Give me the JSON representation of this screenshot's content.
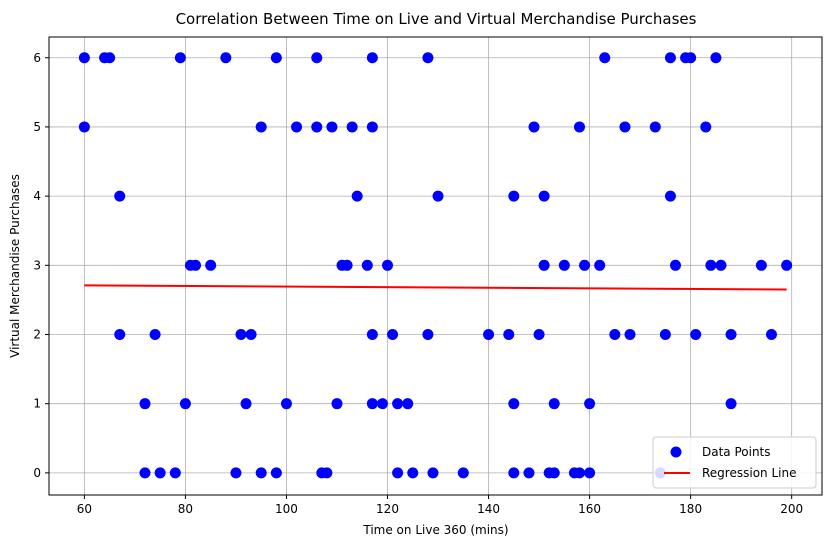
{
  "chart_data": {
    "type": "scatter",
    "title": "Correlation Between Time on Live and Virtual Merchandise Purchases",
    "xlabel": "Time on Live 360 (mins)",
    "ylabel": "Virtual Merchandise Purchases",
    "xlim": [
      53,
      206
    ],
    "ylim": [
      -0.32,
      6.3
    ],
    "xticks": [
      60,
      80,
      100,
      120,
      140,
      160,
      180,
      200
    ],
    "yticks": [
      0,
      1,
      2,
      3,
      4,
      5,
      6
    ],
    "grid": true,
    "legend_position": "lower-right",
    "colors": {
      "points": "#0000ff",
      "line": "#ff0000",
      "grid": "#b0b0b0"
    },
    "series": [
      {
        "name": "Data Points",
        "kind": "scatter",
        "points": [
          [
            60,
            6
          ],
          [
            64,
            6
          ],
          [
            65,
            6
          ],
          [
            79,
            6
          ],
          [
            88,
            6
          ],
          [
            98,
            6
          ],
          [
            106,
            6
          ],
          [
            117,
            6
          ],
          [
            128,
            6
          ],
          [
            163,
            6
          ],
          [
            176,
            6
          ],
          [
            179,
            6
          ],
          [
            180,
            6
          ],
          [
            185,
            6
          ],
          [
            60,
            5
          ],
          [
            95,
            5
          ],
          [
            102,
            5
          ],
          [
            106,
            5
          ],
          [
            109,
            5
          ],
          [
            113,
            5
          ],
          [
            117,
            5
          ],
          [
            149,
            5
          ],
          [
            158,
            5
          ],
          [
            167,
            5
          ],
          [
            173,
            5
          ],
          [
            183,
            5
          ],
          [
            67,
            4
          ],
          [
            114,
            4
          ],
          [
            130,
            4
          ],
          [
            145,
            4
          ],
          [
            151,
            4
          ],
          [
            176,
            4
          ],
          [
            81,
            3
          ],
          [
            82,
            3
          ],
          [
            85,
            3
          ],
          [
            111,
            3
          ],
          [
            112,
            3
          ],
          [
            116,
            3
          ],
          [
            120,
            3
          ],
          [
            151,
            3
          ],
          [
            155,
            3
          ],
          [
            159,
            3
          ],
          [
            162,
            3
          ],
          [
            177,
            3
          ],
          [
            184,
            3
          ],
          [
            186,
            3
          ],
          [
            194,
            3
          ],
          [
            199,
            3
          ],
          [
            67,
            2
          ],
          [
            74,
            2
          ],
          [
            91,
            2
          ],
          [
            93,
            2
          ],
          [
            117,
            2
          ],
          [
            121,
            2
          ],
          [
            128,
            2
          ],
          [
            140,
            2
          ],
          [
            144,
            2
          ],
          [
            150,
            2
          ],
          [
            165,
            2
          ],
          [
            168,
            2
          ],
          [
            175,
            2
          ],
          [
            181,
            2
          ],
          [
            188,
            2
          ],
          [
            196,
            2
          ],
          [
            72,
            1
          ],
          [
            80,
            1
          ],
          [
            92,
            1
          ],
          [
            100,
            1
          ],
          [
            110,
            1
          ],
          [
            117,
            1
          ],
          [
            119,
            1
          ],
          [
            122,
            1
          ],
          [
            124,
            1
          ],
          [
            145,
            1
          ],
          [
            153,
            1
          ],
          [
            160,
            1
          ],
          [
            188,
            1
          ],
          [
            72,
            0
          ],
          [
            75,
            0
          ],
          [
            78,
            0
          ],
          [
            90,
            0
          ],
          [
            95,
            0
          ],
          [
            98,
            0
          ],
          [
            107,
            0
          ],
          [
            108,
            0
          ],
          [
            122,
            0
          ],
          [
            125,
            0
          ],
          [
            129,
            0
          ],
          [
            135,
            0
          ],
          [
            145,
            0
          ],
          [
            148,
            0
          ],
          [
            152,
            0
          ],
          [
            153,
            0
          ],
          [
            157,
            0
          ],
          [
            158,
            0
          ],
          [
            160,
            0
          ],
          [
            174,
            0
          ]
        ]
      },
      {
        "name": "Regression Line",
        "kind": "line",
        "points": [
          [
            60,
            2.71
          ],
          [
            199,
            2.65
          ]
        ]
      }
    ]
  }
}
